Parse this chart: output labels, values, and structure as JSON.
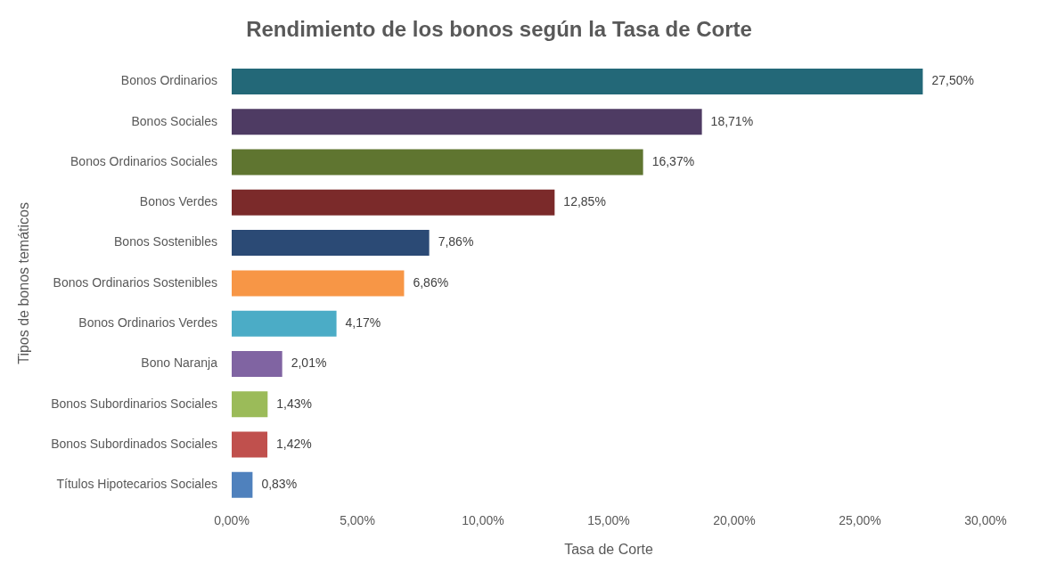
{
  "chart_data": {
    "type": "bar",
    "orientation": "horizontal",
    "title": "Rendimiento de los bonos según la Tasa de Corte",
    "xlabel": "Tasa de Corte",
    "ylabel": "Tipos de bonos temáticos",
    "categories": [
      "Bonos Ordinarios",
      "Bonos Sociales",
      "Bonos Ordinarios Sociales",
      "Bonos Verdes",
      "Bonos Sostenibles",
      "Bonos Ordinarios Sostenibles",
      "Bonos Ordinarios Verdes",
      "Bono Naranja",
      "Bonos Subordinarios Sociales",
      "Bonos Subordinados Sociales",
      "Títulos Hipotecarios Sociales"
    ],
    "values": [
      27.5,
      18.71,
      16.37,
      12.85,
      7.86,
      6.86,
      4.17,
      2.01,
      1.43,
      1.42,
      0.83
    ],
    "value_labels": [
      "27,50%",
      "18,71%",
      "16,37%",
      "12,85%",
      "7,86%",
      "6,86%",
      "4,17%",
      "2,01%",
      "1,43%",
      "1,42%",
      "0,83%"
    ],
    "colors": [
      "#236878",
      "#4e3b63",
      "#5f7530",
      "#7b2a2a",
      "#2b4a75",
      "#f79646",
      "#4bacc6",
      "#8064a2",
      "#9bbb59",
      "#c0504d",
      "#4f81bd"
    ],
    "xlim": [
      0,
      30
    ],
    "xticks": [
      {
        "value": 0,
        "label": "0,00%"
      },
      {
        "value": 5,
        "label": "5,00%"
      },
      {
        "value": 10,
        "label": "10,00%"
      },
      {
        "value": 15,
        "label": "15,00%"
      },
      {
        "value": 20,
        "label": "20,00%"
      },
      {
        "value": 25,
        "label": "25,00%"
      },
      {
        "value": 30,
        "label": "30,00%"
      }
    ],
    "grid": false,
    "legend": false
  }
}
